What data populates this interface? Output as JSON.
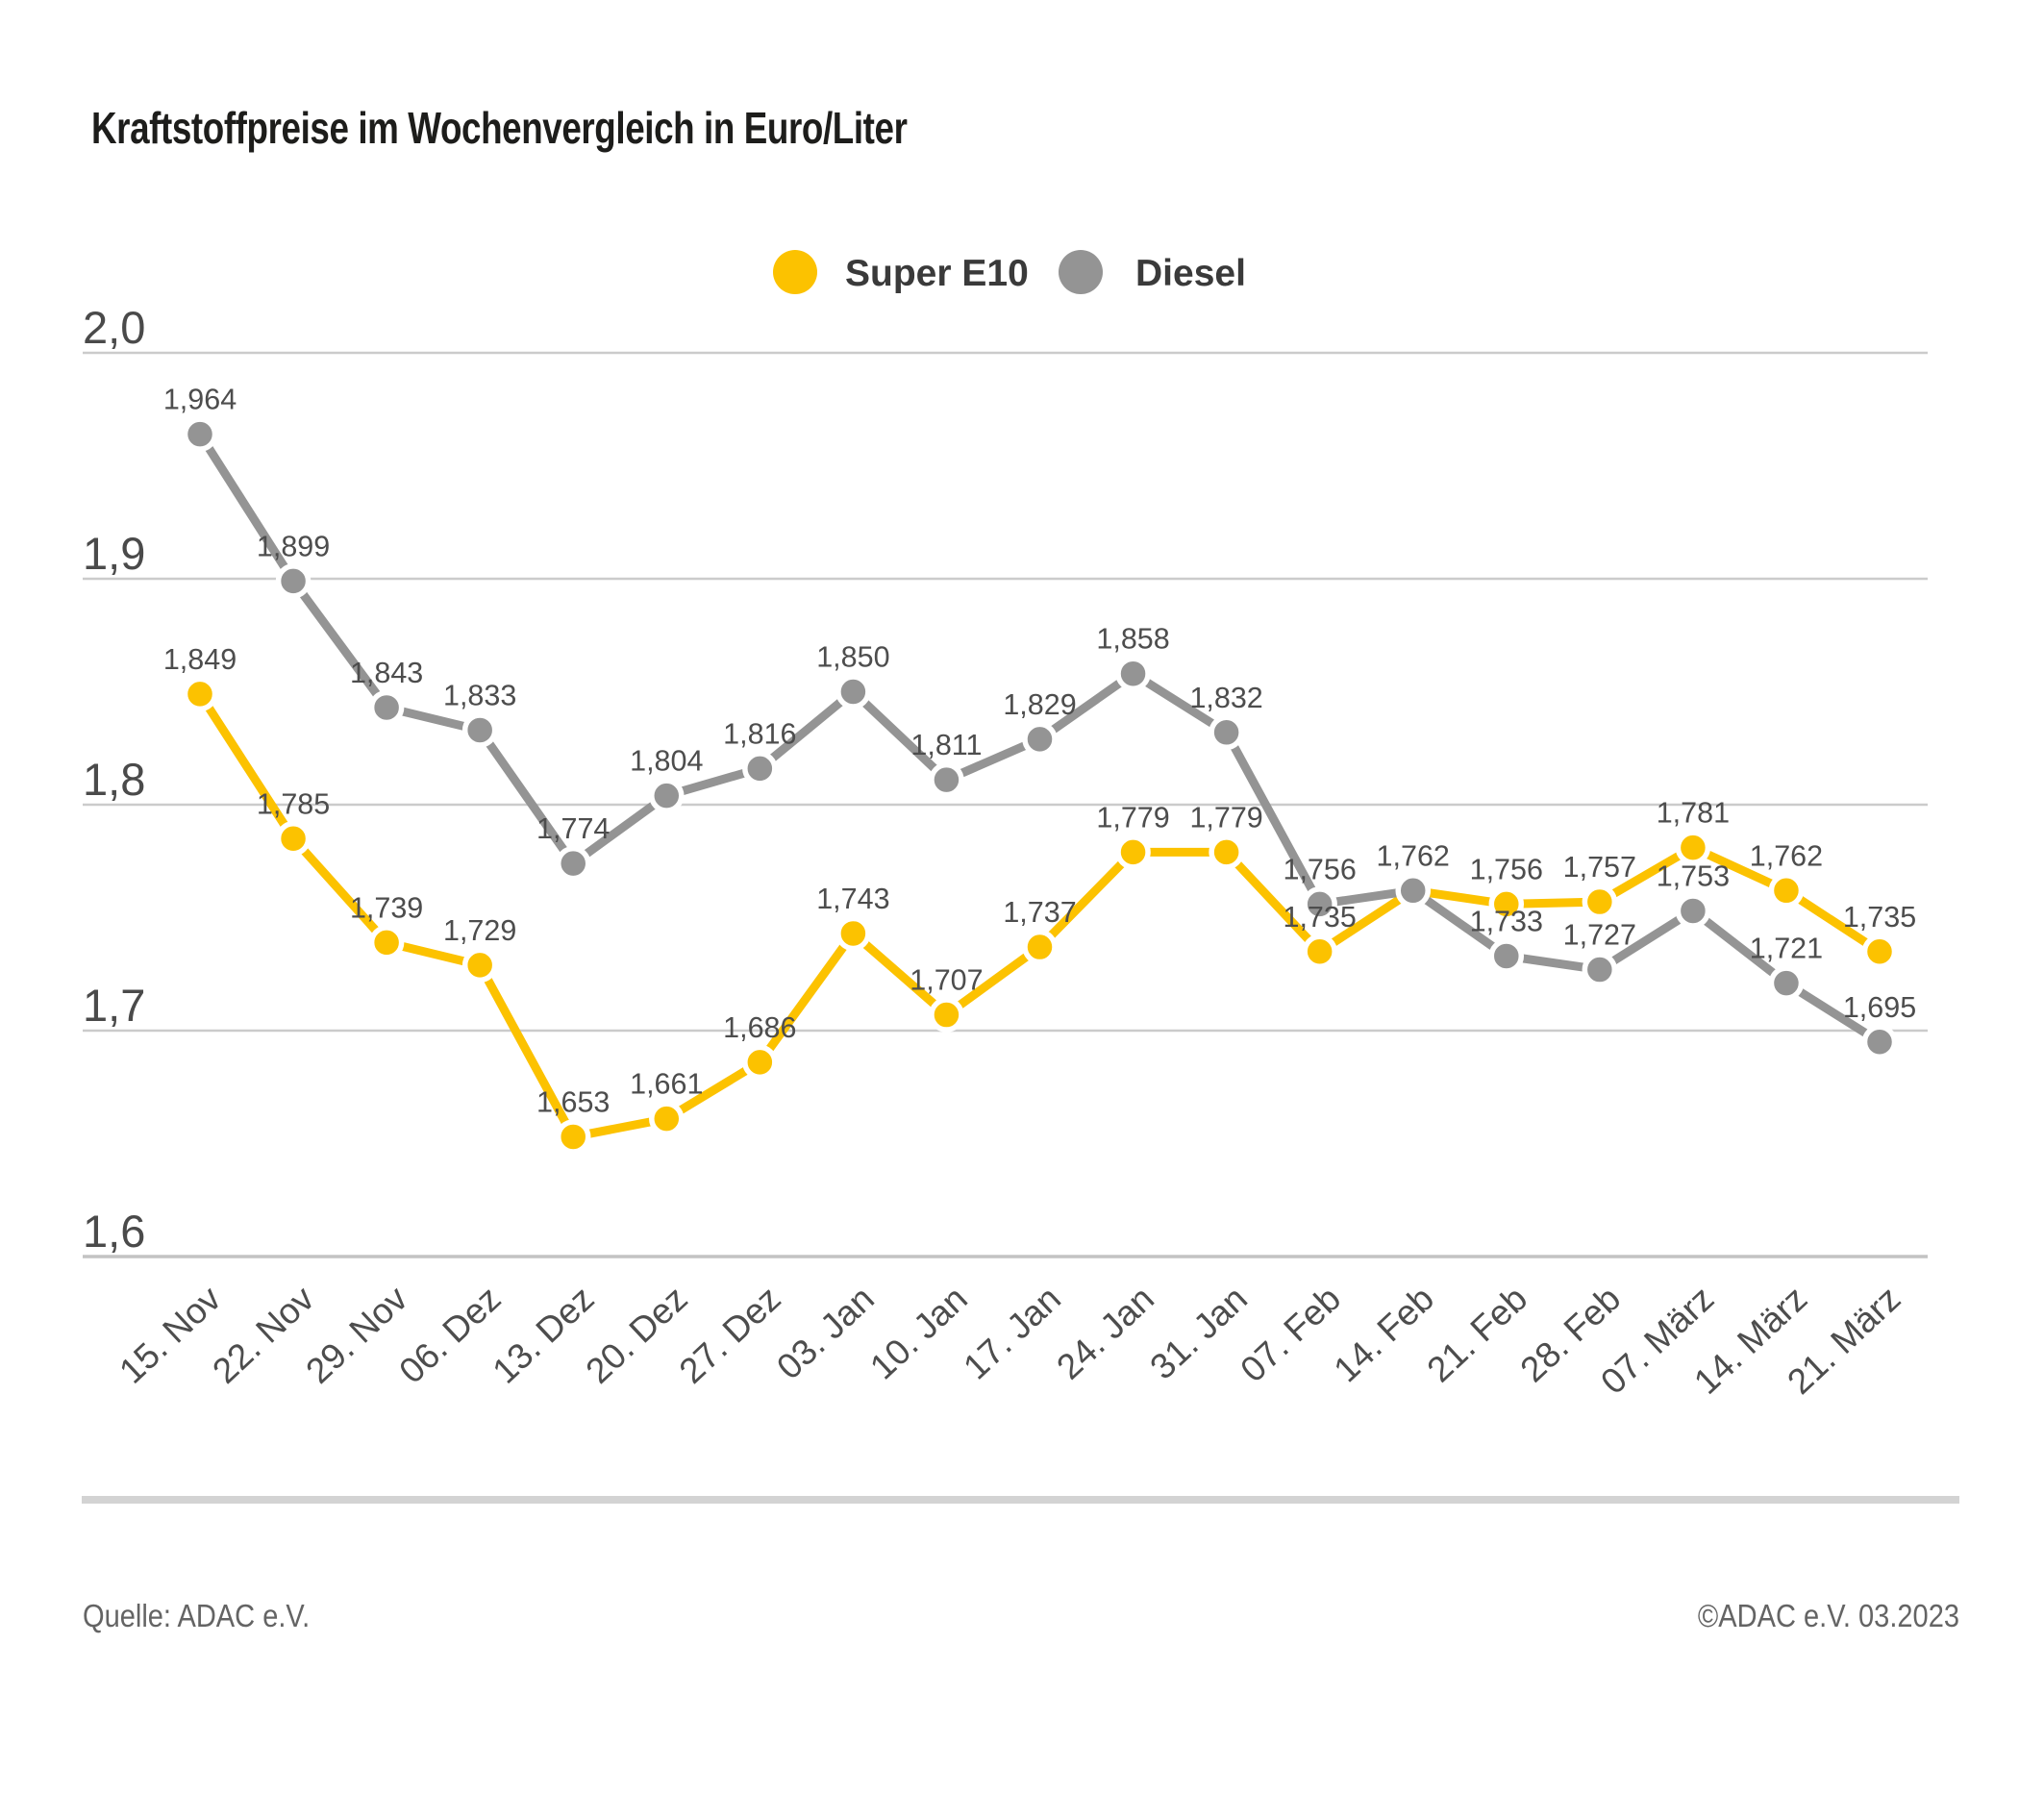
{
  "title": "Kraftstoffpreise im Wochenvergleich in Euro/Liter",
  "footer": {
    "source": "Quelle: ADAC e.V.",
    "copyright": "©ADAC e.V. 03.2023"
  },
  "colors": {
    "super_e10": "#FCC200",
    "diesel": "#949494",
    "background": "#FFFFFF"
  },
  "chart_data": {
    "type": "line",
    "title": "Kraftstoffpreise im Wochenvergleich in Euro/Liter",
    "unit": "Euro/Liter",
    "categories": [
      "15. Nov",
      "22. Nov",
      "29. Nov",
      "06. Dez",
      "13. Dez",
      "20. Dez",
      "27. Dez",
      "03. Jan",
      "10. Jan",
      "17. Jan",
      "24. Jan",
      "31. Jan",
      "07. Feb",
      "14. Feb",
      "21. Feb",
      "28. Feb",
      "07. März",
      "14. März",
      "21. März"
    ],
    "series": [
      {
        "name": "Super E10",
        "color": "#FCC200",
        "values": [
          1.849,
          1.785,
          1.739,
          1.729,
          1.653,
          1.661,
          1.686,
          1.743,
          1.707,
          1.737,
          1.779,
          1.779,
          1.735,
          1.762,
          1.756,
          1.757,
          1.781,
          1.762,
          1.735
        ],
        "hide_label_at": [
          13
        ]
      },
      {
        "name": "Diesel",
        "color": "#949494",
        "values": [
          1.964,
          1.899,
          1.843,
          1.833,
          1.774,
          1.804,
          1.816,
          1.85,
          1.811,
          1.829,
          1.858,
          1.832,
          1.756,
          1.762,
          1.733,
          1.727,
          1.753,
          1.721,
          1.695
        ],
        "hide_label_at": []
      }
    ],
    "ylim": [
      1.6,
      2.0
    ],
    "y_ticks": [
      2.0,
      1.9,
      1.8,
      1.7,
      1.6
    ],
    "decimal_separator": ",",
    "value_decimals": 3,
    "grid": "horizontal",
    "legend_position": "top-center",
    "point_labels": true
  }
}
